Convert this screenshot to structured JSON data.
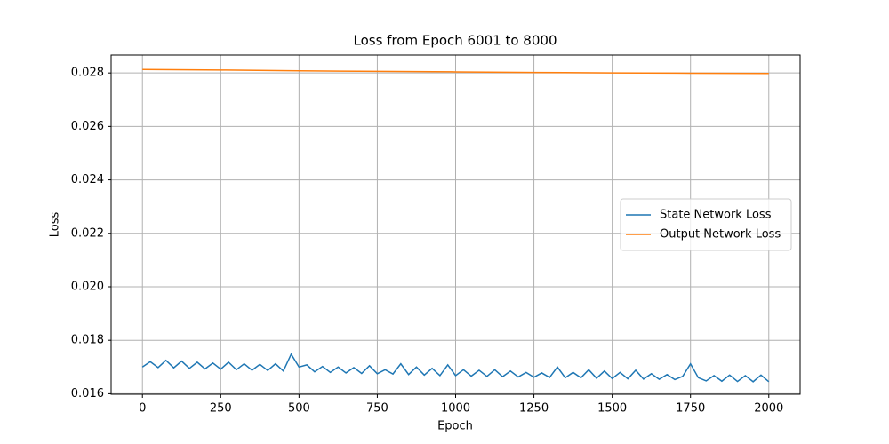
{
  "chart_data": {
    "type": "line",
    "title": "Loss from Epoch 6001 to 8000",
    "x_label": "Epoch",
    "y_label": "Loss",
    "xlim": [
      -100,
      2100
    ],
    "xticks": [
      0,
      250,
      500,
      750,
      1000,
      1250,
      1500,
      1750,
      2000
    ],
    "ylim": [
      0.01598,
      0.02867
    ],
    "yticks": [
      0.016,
      0.018,
      {
        "value": 0.02,
        "label": "0.020"
      },
      0.022,
      0.024,
      0.026,
      0.028
    ],
    "grid": true,
    "legend": "center right",
    "series": [
      {
        "name": "State Network Loss",
        "color": "#1f77b4",
        "x": [
          0,
          25,
          50,
          75,
          100,
          125,
          150,
          175,
          200,
          225,
          250,
          275,
          300,
          325,
          350,
          375,
          400,
          425,
          450,
          475,
          500,
          525,
          550,
          575,
          600,
          625,
          650,
          675,
          700,
          725,
          750,
          775,
          800,
          825,
          850,
          875,
          900,
          925,
          950,
          975,
          1000,
          1025,
          1050,
          1075,
          1100,
          1125,
          1150,
          1175,
          1200,
          1225,
          1250,
          1275,
          1300,
          1325,
          1350,
          1375,
          1400,
          1425,
          1450,
          1475,
          1500,
          1525,
          1550,
          1575,
          1600,
          1625,
          1650,
          1675,
          1700,
          1725,
          1750,
          1775,
          1800,
          1825,
          1850,
          1875,
          1900,
          1925,
          1950,
          1975,
          2000
        ],
        "values": [
          0.017,
          0.0172,
          0.01698,
          0.01725,
          0.01697,
          0.01722,
          0.01695,
          0.01718,
          0.01693,
          0.01715,
          0.01692,
          0.01718,
          0.0169,
          0.01712,
          0.01688,
          0.0171,
          0.01687,
          0.01712,
          0.01685,
          0.01748,
          0.017,
          0.01708,
          0.01682,
          0.01702,
          0.0168,
          0.017,
          0.01678,
          0.01698,
          0.01676,
          0.01705,
          0.01675,
          0.0169,
          0.01674,
          0.01712,
          0.01672,
          0.017,
          0.0167,
          0.01695,
          0.01668,
          0.01708,
          0.01668,
          0.0169,
          0.01666,
          0.01688,
          0.01665,
          0.0169,
          0.01664,
          0.01685,
          0.01663,
          0.0168,
          0.01662,
          0.01678,
          0.01661,
          0.017,
          0.0166,
          0.0168,
          0.0166,
          0.0169,
          0.01658,
          0.01685,
          0.01657,
          0.0168,
          0.01656,
          0.01688,
          0.01655,
          0.01675,
          0.01654,
          0.01672,
          0.01653,
          0.01665,
          0.01712,
          0.0166,
          0.01648,
          0.01668,
          0.01647,
          0.0167,
          0.01646,
          0.01668,
          0.01645,
          0.0167,
          0.01645
        ]
      },
      {
        "name": "Output Network Loss",
        "color": "#ff7f0e",
        "x": [
          0,
          250,
          500,
          750,
          1000,
          1250,
          1500,
          1750,
          2000
        ],
        "values": [
          0.02813,
          0.02811,
          0.02808,
          0.02806,
          0.02804,
          0.02802,
          0.028,
          0.02799,
          0.02798
        ]
      }
    ]
  }
}
